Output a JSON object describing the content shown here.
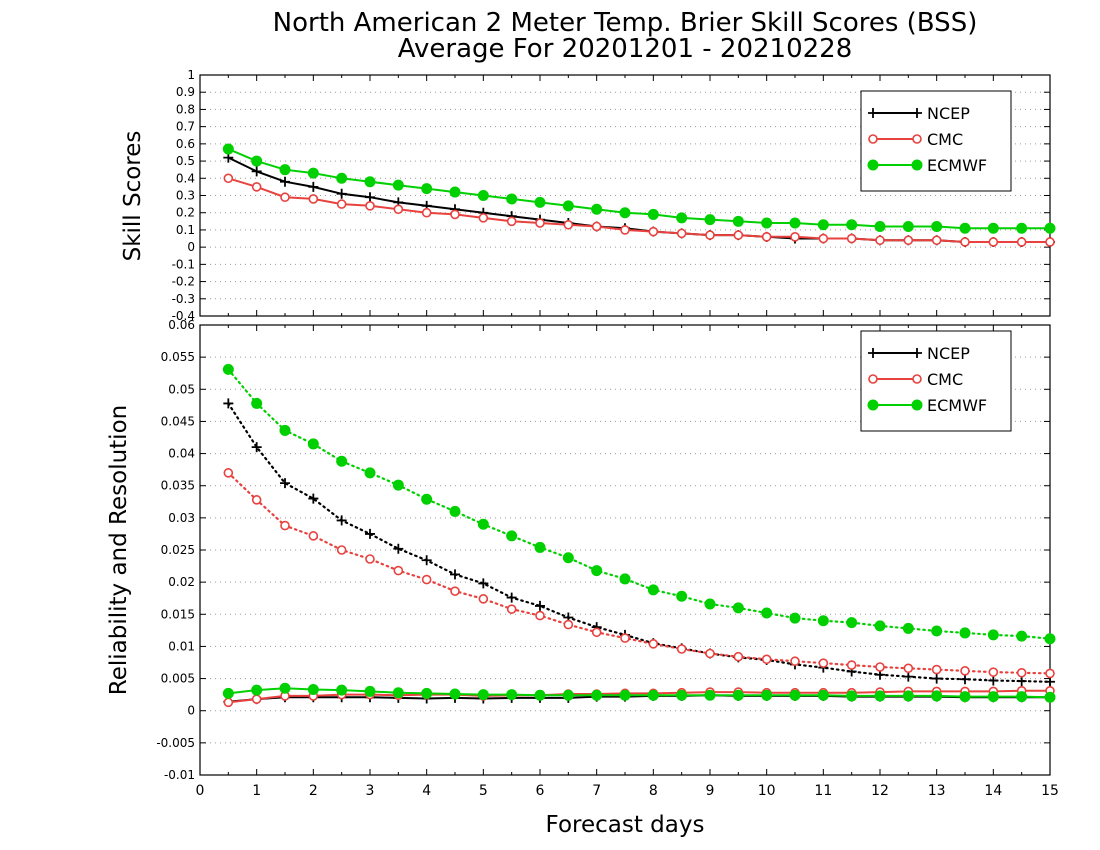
{
  "title_line1": "North American 2 Meter Temp. Brier Skill Scores (BSS)",
  "title_line2": "Average For 20201201 - 20210228",
  "xlabel": "Forecast days",
  "colors": {
    "NCEP": "#000000",
    "CMC": "#e8413e",
    "ECMWF": "#00d000"
  },
  "chart_data": [
    {
      "type": "line",
      "ylabel": "Skill Scores",
      "xlim": [
        0,
        15
      ],
      "ylim": [
        -0.4,
        1
      ],
      "x_ticks": [
        0,
        1,
        2,
        3,
        4,
        5,
        6,
        7,
        8,
        9,
        10,
        11,
        12,
        13,
        14,
        15
      ],
      "y_ticks": [
        -0.4,
        -0.3,
        -0.2,
        -0.1,
        0,
        0.1,
        0.2,
        0.3,
        0.4,
        0.5,
        0.6,
        0.7,
        0.8,
        0.9,
        1
      ],
      "y_tick_labels": [
        "-0.4",
        "-0.3",
        "-0.2",
        "-0.1",
        "0",
        "0.1",
        "0.2",
        "0.3",
        "0.4",
        "0.5",
        "0.6",
        "0.7",
        "0.8",
        "0.9",
        "1"
      ],
      "grid": true,
      "legend_position": "top-right",
      "legend": [
        "NCEP",
        "CMC",
        "ECMWF"
      ],
      "x": [
        0.5,
        1,
        1.5,
        2,
        2.5,
        3,
        3.5,
        4,
        4.5,
        5,
        5.5,
        6,
        6.5,
        7,
        7.5,
        8,
        8.5,
        9,
        9.5,
        10,
        10.5,
        11,
        11.5,
        12,
        12.5,
        13,
        13.5,
        14,
        14.5,
        15
      ],
      "series": [
        {
          "name": "NCEP",
          "marker": "plus",
          "line": "solid",
          "values": [
            0.52,
            0.44,
            0.38,
            0.35,
            0.31,
            0.29,
            0.26,
            0.24,
            0.22,
            0.2,
            0.18,
            0.16,
            0.14,
            0.12,
            0.11,
            0.09,
            0.08,
            0.07,
            0.07,
            0.06,
            0.05,
            0.05,
            0.05,
            0.04,
            0.04,
            0.04,
            0.03,
            0.03,
            0.03,
            0.03
          ]
        },
        {
          "name": "CMC",
          "marker": "open-circle",
          "line": "solid",
          "values": [
            0.4,
            0.35,
            0.29,
            0.28,
            0.25,
            0.24,
            0.22,
            0.2,
            0.19,
            0.17,
            0.15,
            0.14,
            0.13,
            0.12,
            0.1,
            0.09,
            0.08,
            0.07,
            0.07,
            0.06,
            0.06,
            0.05,
            0.05,
            0.04,
            0.04,
            0.04,
            0.03,
            0.03,
            0.03,
            0.03
          ]
        },
        {
          "name": "ECMWF",
          "marker": "filled-circle",
          "line": "solid",
          "values": [
            0.57,
            0.5,
            0.45,
            0.43,
            0.4,
            0.38,
            0.36,
            0.34,
            0.32,
            0.3,
            0.28,
            0.26,
            0.24,
            0.22,
            0.2,
            0.19,
            0.17,
            0.16,
            0.15,
            0.14,
            0.14,
            0.13,
            0.13,
            0.12,
            0.12,
            0.12,
            0.11,
            0.11,
            0.11,
            0.11
          ]
        }
      ]
    },
    {
      "type": "line",
      "ylabel": "Reliability and Resolution",
      "xlim": [
        0,
        15
      ],
      "ylim": [
        -0.01,
        0.06
      ],
      "x_ticks": [
        0,
        1,
        2,
        3,
        4,
        5,
        6,
        7,
        8,
        9,
        10,
        11,
        12,
        13,
        14,
        15
      ],
      "y_ticks": [
        -0.01,
        -0.005,
        0,
        0.005,
        0.01,
        0.015,
        0.02,
        0.025,
        0.03,
        0.035,
        0.04,
        0.045,
        0.05,
        0.055,
        0.06
      ],
      "y_tick_labels": [
        "-0.01",
        "-0.005",
        "0",
        "0.005",
        "0.01",
        "0.015",
        "0.02",
        "0.025",
        "0.03",
        "0.035",
        "0.04",
        "0.045",
        "0.05",
        "0.055",
        "0.06"
      ],
      "grid": true,
      "legend_position": "top-right",
      "legend": [
        "NCEP",
        "CMC",
        "ECMWF"
      ],
      "x": [
        0.5,
        1,
        1.5,
        2,
        2.5,
        3,
        3.5,
        4,
        4.5,
        5,
        5.5,
        6,
        6.5,
        7,
        7.5,
        8,
        8.5,
        9,
        9.5,
        10,
        10.5,
        11,
        11.5,
        12,
        12.5,
        13,
        13.5,
        14,
        14.5,
        15
      ],
      "series": [
        {
          "name": "NCEP",
          "role": "resolution",
          "marker": "plus",
          "line": "dotted",
          "values": [
            0.0478,
            0.041,
            0.0354,
            0.033,
            0.0296,
            0.0275,
            0.0252,
            0.0234,
            0.0212,
            0.0198,
            0.0176,
            0.0163,
            0.0145,
            0.013,
            0.0118,
            0.0105,
            0.0097,
            0.0089,
            0.0083,
            0.0079,
            0.0072,
            0.0067,
            0.0061,
            0.0056,
            0.0053,
            0.005,
            0.0049,
            0.0047,
            0.0046,
            0.0045
          ]
        },
        {
          "name": "CMC",
          "role": "resolution",
          "marker": "open-circle",
          "line": "dotted",
          "values": [
            0.037,
            0.0328,
            0.0288,
            0.0272,
            0.025,
            0.0236,
            0.0218,
            0.0204,
            0.0186,
            0.0174,
            0.0158,
            0.0148,
            0.0134,
            0.0122,
            0.0113,
            0.0104,
            0.0096,
            0.0089,
            0.0084,
            0.008,
            0.0077,
            0.0074,
            0.0071,
            0.0068,
            0.0066,
            0.0064,
            0.0062,
            0.006,
            0.0059,
            0.0058
          ]
        },
        {
          "name": "ECMWF",
          "role": "resolution",
          "marker": "filled-circle",
          "line": "dotted",
          "values": [
            0.0531,
            0.0478,
            0.0436,
            0.0415,
            0.0388,
            0.037,
            0.0351,
            0.0329,
            0.031,
            0.029,
            0.0272,
            0.0254,
            0.0238,
            0.0218,
            0.0205,
            0.0188,
            0.0178,
            0.0166,
            0.016,
            0.0152,
            0.0144,
            0.014,
            0.0137,
            0.0132,
            0.0128,
            0.0124,
            0.0121,
            0.0118,
            0.0116,
            0.0112
          ]
        },
        {
          "name": "NCEP",
          "role": "reliability",
          "marker": "plus",
          "line": "solid",
          "values": [
            0.0014,
            0.0018,
            0.0021,
            0.0021,
            0.0021,
            0.0021,
            0.002,
            0.0019,
            0.002,
            0.0019,
            0.002,
            0.002,
            0.002,
            0.0022,
            0.0022,
            0.0023,
            0.0023,
            0.0024,
            0.0023,
            0.0023,
            0.0023,
            0.0023,
            0.0022,
            0.0022,
            0.0022,
            0.0022,
            0.0021,
            0.0021,
            0.0021,
            0.0021
          ]
        },
        {
          "name": "CMC",
          "role": "reliability",
          "marker": "open-circle",
          "line": "solid",
          "values": [
            0.0013,
            0.0018,
            0.0023,
            0.0023,
            0.0025,
            0.0025,
            0.0024,
            0.0025,
            0.0025,
            0.0023,
            0.0024,
            0.0024,
            0.0026,
            0.0026,
            0.0027,
            0.0027,
            0.0028,
            0.0029,
            0.0029,
            0.0028,
            0.0028,
            0.0028,
            0.0028,
            0.0029,
            0.003,
            0.003,
            0.003,
            0.003,
            0.0031,
            0.0031
          ]
        },
        {
          "name": "ECMWF",
          "role": "reliability",
          "marker": "filled-circle",
          "line": "solid",
          "values": [
            0.0027,
            0.0032,
            0.0035,
            0.0033,
            0.0032,
            0.003,
            0.0028,
            0.0027,
            0.0026,
            0.0025,
            0.0025,
            0.0024,
            0.0024,
            0.0024,
            0.0024,
            0.0024,
            0.0024,
            0.0024,
            0.0024,
            0.0024,
            0.0024,
            0.0024,
            0.0023,
            0.0023,
            0.0023,
            0.0023,
            0.0022,
            0.0022,
            0.0022,
            0.0021
          ]
        }
      ]
    }
  ]
}
